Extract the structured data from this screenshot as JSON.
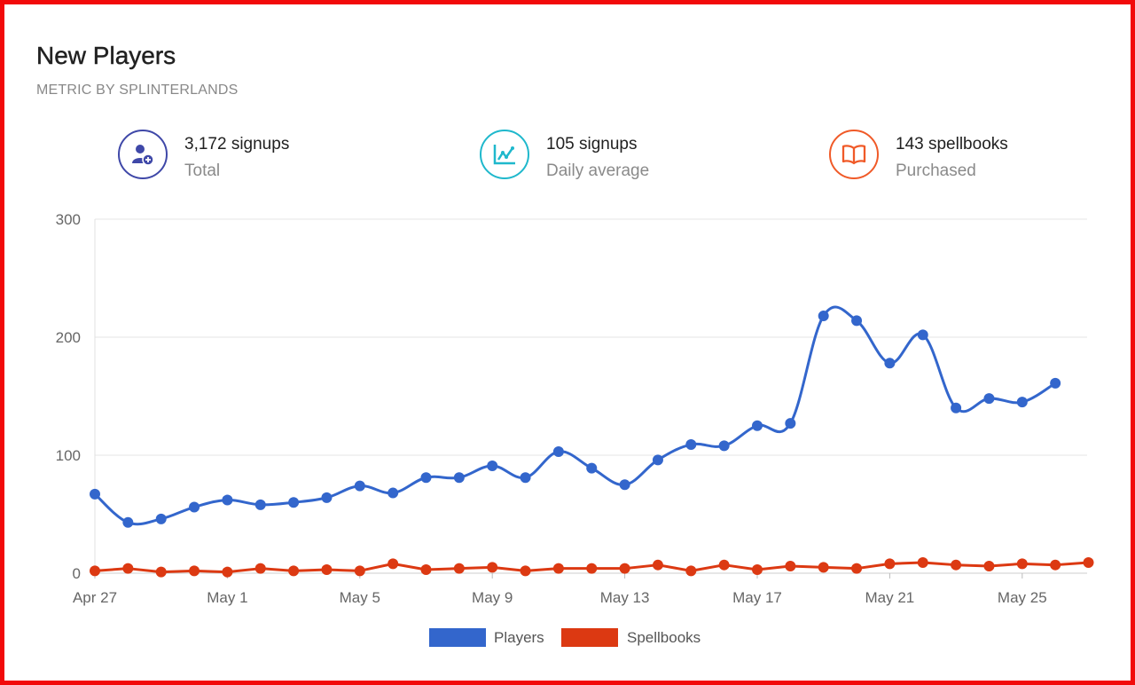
{
  "header": {
    "title": "New Players",
    "subtitle": "METRIC BY SPLINTERLANDS"
  },
  "stats": [
    {
      "value": "3,172 signups",
      "label": "Total",
      "icon": "user-add-icon",
      "color": "#3f48a8"
    },
    {
      "value": "105 signups",
      "label": "Daily average",
      "icon": "line-chart-icon",
      "color": "#1fb8cc"
    },
    {
      "value": "143 spellbooks",
      "label": "Purchased",
      "icon": "open-book-icon",
      "color": "#f05a28"
    }
  ],
  "chart_data": {
    "type": "line",
    "x": [
      "Apr 27",
      "Apr 28",
      "Apr 29",
      "Apr 30",
      "May 1",
      "May 2",
      "May 3",
      "May 4",
      "May 5",
      "May 6",
      "May 7",
      "May 8",
      "May 9",
      "May 10",
      "May 11",
      "May 12",
      "May 13",
      "May 14",
      "May 15",
      "May 16",
      "May 17",
      "May 18",
      "May 19",
      "May 20",
      "May 21",
      "May 22",
      "May 23",
      "May 24",
      "May 25",
      "May 26",
      "May 27"
    ],
    "x_tick_labels": [
      "Apr 27",
      "May 1",
      "May 5",
      "May 9",
      "May 13",
      "May 17",
      "May 21",
      "May 25"
    ],
    "series": [
      {
        "name": "Players",
        "color": "#3366cc",
        "smooth": true,
        "values": [
          67,
          43,
          46,
          56,
          62,
          58,
          60,
          64,
          74,
          68,
          81,
          81,
          91,
          81,
          103,
          89,
          75,
          96,
          109,
          108,
          125,
          127,
          218,
          214,
          178,
          202,
          140,
          148,
          145,
          161,
          null
        ]
      },
      {
        "name": "Spellbooks",
        "color": "#dc3912",
        "smooth": false,
        "values": [
          2,
          4,
          1,
          2,
          1,
          4,
          2,
          3,
          2,
          8,
          3,
          4,
          5,
          2,
          4,
          4,
          4,
          7,
          2,
          7,
          3,
          6,
          5,
          4,
          8,
          9,
          7,
          6,
          8,
          7,
          9
        ]
      }
    ],
    "ylim": [
      0,
      300
    ],
    "y_ticks": [
      0,
      100,
      200,
      300
    ],
    "grid": true,
    "legend": "bottom"
  }
}
